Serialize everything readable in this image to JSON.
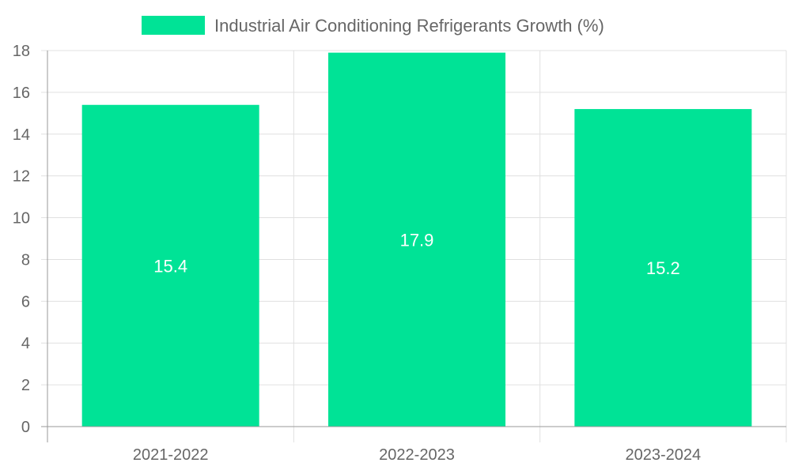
{
  "chart_data": {
    "type": "bar",
    "title": "",
    "xlabel": "",
    "ylabel": "",
    "categories": [
      "2021-2022",
      "2022-2023",
      "2023-2024"
    ],
    "series": [
      {
        "name": "Industrial Air Conditioning Refrigerants Growth (%)",
        "values": [
          15.4,
          17.9,
          15.2
        ],
        "labels": [
          "15.4",
          "17.9",
          "15.2"
        ],
        "color": "#00e396"
      }
    ],
    "ylim": [
      0,
      18
    ],
    "yticks": [
      0,
      2,
      4,
      6,
      8,
      10,
      12,
      14,
      16,
      18
    ],
    "ytick_labels": [
      "0",
      "2",
      "4",
      "6",
      "8",
      "10",
      "12",
      "14",
      "16",
      "18"
    ],
    "grid": true,
    "legend_position": "top-center"
  }
}
